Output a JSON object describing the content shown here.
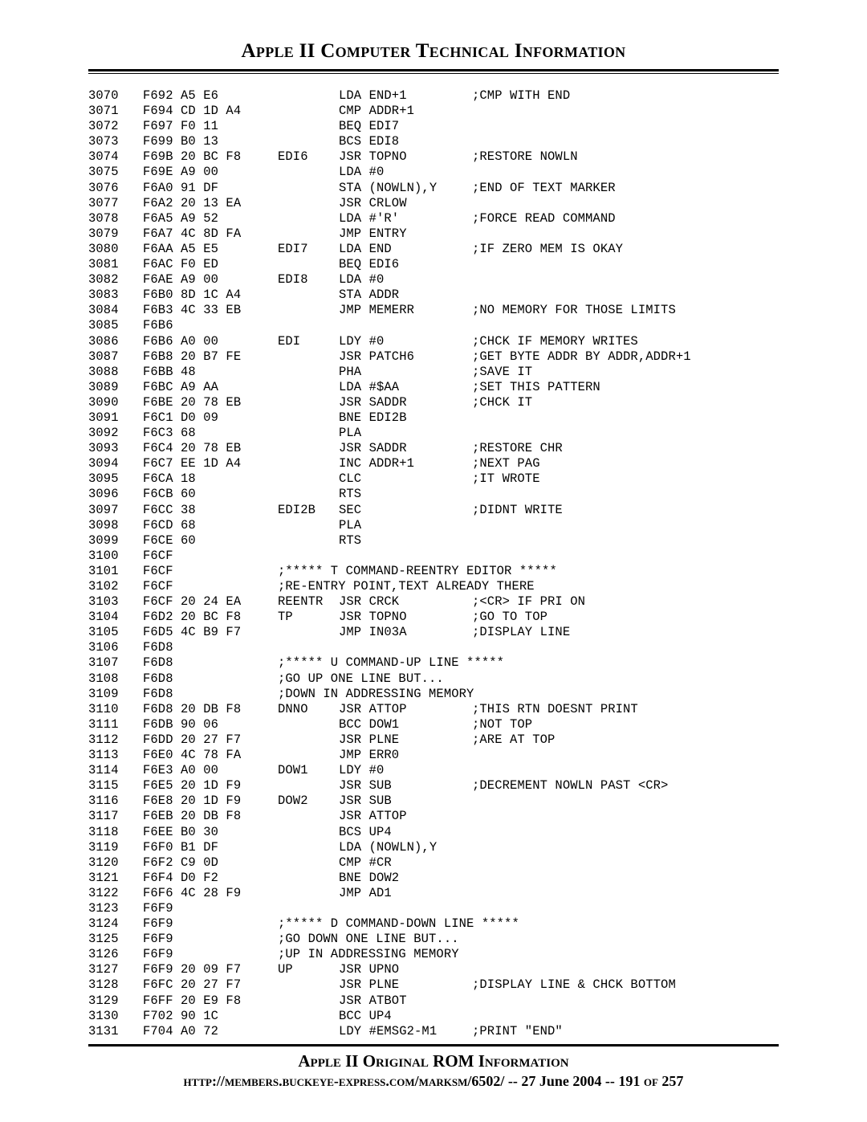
{
  "header": {
    "title": "Apple II Computer Technical Information",
    "apple_glyph": ""
  },
  "footer": {
    "title": "Apple II Original ROM Information",
    "url_prefix": "http://members.buckeye-express.com/marksm/",
    "url_bold": "6502/",
    "sep": " -- ",
    "date": "27 June 2004",
    "page": "191 of 257"
  },
  "listing": [
    {
      "line": "3070",
      "hex": "F692 A5 E6",
      "label": "",
      "op": "LDA END+1",
      "com": ";CMP WITH END"
    },
    {
      "line": "3071",
      "hex": "F694 CD 1D A4",
      "label": "",
      "op": "CMP ADDR+1",
      "com": ""
    },
    {
      "line": "3072",
      "hex": "F697 F0 11",
      "label": "",
      "op": "BEQ EDI7",
      "com": ""
    },
    {
      "line": "3073",
      "hex": "F699 B0 13",
      "label": "",
      "op": "BCS EDI8",
      "com": ""
    },
    {
      "line": "3074",
      "hex": "F69B 20 BC F8",
      "label": "EDI6",
      "op": "JSR TOPNO",
      "com": ";RESTORE NOWLN"
    },
    {
      "line": "3075",
      "hex": "F69E A9 00",
      "label": "",
      "op": "LDA #0",
      "com": ""
    },
    {
      "line": "3076",
      "hex": "F6A0 91 DF",
      "label": "",
      "op": "STA (NOWLN),Y",
      "com": ";END OF TEXT MARKER"
    },
    {
      "line": "3077",
      "hex": "F6A2 20 13 EA",
      "label": "",
      "op": "JSR CRLOW",
      "com": ""
    },
    {
      "line": "3078",
      "hex": "F6A5 A9 52",
      "label": "",
      "op": "LDA #'R'",
      "com": ";FORCE READ COMMAND"
    },
    {
      "line": "3079",
      "hex": "F6A7 4C 8D FA",
      "label": "",
      "op": "JMP ENTRY",
      "com": ""
    },
    {
      "line": "3080",
      "hex": "F6AA A5 E5",
      "label": "EDI7",
      "op": "LDA END",
      "com": ";IF ZERO MEM IS OKAY"
    },
    {
      "line": "3081",
      "hex": "F6AC F0 ED",
      "label": "",
      "op": "BEQ EDI6",
      "com": ""
    },
    {
      "line": "3082",
      "hex": "F6AE A9 00",
      "label": "EDI8",
      "op": "LDA #0",
      "com": ""
    },
    {
      "line": "3083",
      "hex": "F6B0 8D 1C A4",
      "label": "",
      "op": "STA ADDR",
      "com": ""
    },
    {
      "line": "3084",
      "hex": "F6B3 4C 33 EB",
      "label": "",
      "op": "JMP MEMERR",
      "com": ";NO MEMORY FOR THOSE LIMITS"
    },
    {
      "line": "3085",
      "hex": "F6B6",
      "label": "",
      "op": "",
      "com": ""
    },
    {
      "line": "3086",
      "hex": "F6B6 A0 00",
      "label": "EDI",
      "op": "LDY #0",
      "com": ";CHCK IF MEMORY WRITES"
    },
    {
      "line": "3087",
      "hex": "F6B8 20 B7 FE",
      "label": "",
      "op": "JSR PATCH6",
      "com": ";GET BYTE ADDR BY ADDR,ADDR+1"
    },
    {
      "line": "3088",
      "hex": "F6BB 48",
      "label": "",
      "op": "PHA",
      "com": ";SAVE IT"
    },
    {
      "line": "3089",
      "hex": "F6BC A9 AA",
      "label": "",
      "op": "LDA #$AA",
      "com": ";SET THIS PATTERN"
    },
    {
      "line": "3090",
      "hex": "F6BE 20 78 EB",
      "label": "",
      "op": "JSR SADDR",
      "com": ";CHCK IT"
    },
    {
      "line": "3091",
      "hex": "F6C1 D0 09",
      "label": "",
      "op": "BNE EDI2B",
      "com": ""
    },
    {
      "line": "3092",
      "hex": "F6C3 68",
      "label": "",
      "op": "PLA",
      "com": ""
    },
    {
      "line": "3093",
      "hex": "F6C4 20 78 EB",
      "label": "",
      "op": "JSR SADDR",
      "com": ";RESTORE CHR"
    },
    {
      "line": "3094",
      "hex": "F6C7 EE 1D A4",
      "label": "",
      "op": "INC ADDR+1",
      "com": ";NEXT PAG"
    },
    {
      "line": "3095",
      "hex": "F6CA 18",
      "label": "",
      "op": "CLC",
      "com": ";IT WROTE"
    },
    {
      "line": "3096",
      "hex": "F6CB 60",
      "label": "",
      "op": "RTS",
      "com": ""
    },
    {
      "line": "3097",
      "hex": "F6CC 38",
      "label": "EDI2B",
      "op": "SEC",
      "com": ";DIDNT WRITE"
    },
    {
      "line": "3098",
      "hex": "F6CD 68",
      "label": "",
      "op": "PLA",
      "com": ""
    },
    {
      "line": "3099",
      "hex": "F6CE 60",
      "label": "",
      "op": "RTS",
      "com": ""
    },
    {
      "line": "3100",
      "hex": "F6CF",
      "label": "",
      "op": "",
      "com": ""
    },
    {
      "line": "3101",
      "hex": "F6CF",
      "full": ";***** T COMMAND-REENTRY EDITOR *****"
    },
    {
      "line": "3102",
      "hex": "F6CF",
      "full": ";RE-ENTRY POINT,TEXT ALREADY THERE"
    },
    {
      "line": "3103",
      "hex": "F6CF 20 24 EA",
      "label": "REENTR",
      "op": "JSR CRCK",
      "com": ";<CR> IF PRI ON"
    },
    {
      "line": "3104",
      "hex": "F6D2 20 BC F8",
      "label": "TP",
      "op": "JSR TOPNO",
      "com": ";GO TO TOP"
    },
    {
      "line": "3105",
      "hex": "F6D5 4C B9 F7",
      "label": "",
      "op": "JMP IN03A",
      "com": ";DISPLAY LINE"
    },
    {
      "line": "3106",
      "hex": "F6D8",
      "label": "",
      "op": "",
      "com": ""
    },
    {
      "line": "3107",
      "hex": "F6D8",
      "full": ";***** U COMMAND-UP LINE *****"
    },
    {
      "line": "3108",
      "hex": "F6D8",
      "full": ";GO UP ONE LINE BUT..."
    },
    {
      "line": "3109",
      "hex": "F6D8",
      "full": ";DOWN IN ADDRESSING MEMORY"
    },
    {
      "line": "3110",
      "hex": "F6D8 20 DB F8",
      "label": "DNNO",
      "op": "JSR ATTOP",
      "com": ";THIS RTN DOESNT PRINT"
    },
    {
      "line": "3111",
      "hex": "F6DB 90 06",
      "label": "",
      "op": "BCC DOW1",
      "com": ";NOT TOP"
    },
    {
      "line": "3112",
      "hex": "F6DD 20 27 F7",
      "label": "",
      "op": "JSR PLNE",
      "com": ";ARE AT TOP"
    },
    {
      "line": "3113",
      "hex": "F6E0 4C 78 FA",
      "label": "",
      "op": "JMP ERR0",
      "com": ""
    },
    {
      "line": "3114",
      "hex": "F6E3 A0 00",
      "label": "DOW1",
      "op": "LDY #0",
      "com": ""
    },
    {
      "line": "3115",
      "hex": "F6E5 20 1D F9",
      "label": "",
      "op": "JSR SUB",
      "com": ";DECREMENT NOWLN PAST <CR>"
    },
    {
      "line": "3116",
      "hex": "F6E8 20 1D F9",
      "label": "DOW2",
      "op": "JSR SUB",
      "com": ""
    },
    {
      "line": "3117",
      "hex": "F6EB 20 DB F8",
      "label": "",
      "op": "JSR ATTOP",
      "com": ""
    },
    {
      "line": "3118",
      "hex": "F6EE B0 30",
      "label": "",
      "op": "BCS UP4",
      "com": ""
    },
    {
      "line": "3119",
      "hex": "F6F0 B1 DF",
      "label": "",
      "op": "LDA (NOWLN),Y",
      "com": ""
    },
    {
      "line": "3120",
      "hex": "F6F2 C9 0D",
      "label": "",
      "op": "CMP #CR",
      "com": ""
    },
    {
      "line": "3121",
      "hex": "F6F4 D0 F2",
      "label": "",
      "op": "BNE DOW2",
      "com": ""
    },
    {
      "line": "3122",
      "hex": "F6F6 4C 28 F9",
      "label": "",
      "op": "JMP AD1",
      "com": ""
    },
    {
      "line": "3123",
      "hex": "F6F9",
      "label": "",
      "op": "",
      "com": ""
    },
    {
      "line": "3124",
      "hex": "F6F9",
      "full": ";***** D COMMAND-DOWN LINE *****"
    },
    {
      "line": "3125",
      "hex": "F6F9",
      "full": ";GO DOWN ONE LINE BUT..."
    },
    {
      "line": "3126",
      "hex": "F6F9",
      "full": ";UP IN ADDRESSING MEMORY"
    },
    {
      "line": "3127",
      "hex": "F6F9 20 09 F7",
      "label": "UP",
      "op": "JSR UPNO",
      "com": ""
    },
    {
      "line": "3128",
      "hex": "F6FC 20 27 F7",
      "label": "",
      "op": "JSR PLNE",
      "com": ";DISPLAY LINE & CHCK BOTTOM"
    },
    {
      "line": "3129",
      "hex": "F6FF 20 E9 F8",
      "label": "",
      "op": "JSR ATBOT",
      "com": ""
    },
    {
      "line": "3130",
      "hex": "F702 90 1C",
      "label": "",
      "op": "BCC UP4",
      "com": ""
    },
    {
      "line": "3131",
      "hex": "F704 A0 72",
      "label": "",
      "op": "LDY #EMSG2-M1",
      "com": ";PRINT \"END\""
    }
  ]
}
